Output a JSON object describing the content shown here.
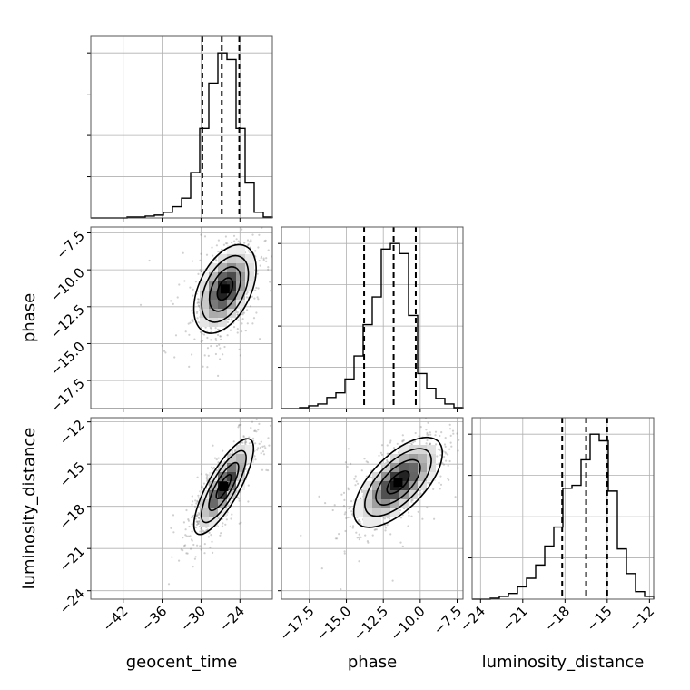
{
  "chart_data": {
    "type": "corner",
    "parameters": [
      {
        "name": "geocent_time",
        "range": [
          -47,
          -19
        ],
        "ticks": [
          -42,
          -36,
          -30,
          -24
        ]
      },
      {
        "name": "phase",
        "range": [
          -19.4,
          -7.1
        ],
        "ticks": [
          -17.5,
          -15.0,
          -12.5,
          -10.0,
          -7.5
        ]
      },
      {
        "name": "luminosity_distance",
        "range": [
          -24.6,
          -11.7
        ],
        "ticks": [
          -24,
          -21,
          -18,
          -15,
          -12
        ]
      }
    ],
    "quantiles": {
      "geocent_time": [
        -29.8,
        -26.8,
        -24.1
      ],
      "phase": [
        -13.8,
        -11.8,
        -10.3
      ],
      "luminosity_distance": [
        -18.2,
        -16.5,
        -15.0
      ]
    },
    "marginals": {
      "geocent_time": {
        "edges": [
          -47,
          -45.6,
          -44.2,
          -42.8,
          -41.4,
          -40,
          -38.6,
          -37.2,
          -35.8,
          -34.4,
          -33,
          -31.6,
          -30.2,
          -28.8,
          -27.4,
          -26,
          -24.6,
          -23.2,
          -21.8,
          -20.4,
          -19
        ],
        "counts": [
          0,
          0,
          0,
          0,
          1,
          1,
          2,
          3,
          6,
          12,
          21,
          48,
          95,
          143,
          175,
          168,
          95,
          37,
          6,
          1
        ]
      },
      "phase": {
        "edges": [
          -19.4,
          -18.785,
          -18.17,
          -17.555,
          -16.94,
          -16.325,
          -15.71,
          -15.095,
          -14.48,
          -13.865,
          -13.25,
          -12.635,
          -12.02,
          -11.405,
          -10.79,
          -10.175,
          -9.56,
          -8.945,
          -8.33,
          -7.715,
          -7.1
        ],
        "counts": [
          0,
          0,
          1,
          3,
          5,
          12,
          17,
          32,
          57,
          91,
          121,
          173,
          179,
          168,
          101,
          38,
          22,
          11,
          5,
          1
        ]
      },
      "luminosity_distance": {
        "edges": [
          -24.6,
          -23.955,
          -23.31,
          -22.665,
          -22.02,
          -21.375,
          -20.73,
          -20.085,
          -19.44,
          -18.795,
          -18.15,
          -17.505,
          -16.86,
          -16.215,
          -15.57,
          -14.925,
          -14.28,
          -13.635,
          -12.99,
          -12.345,
          -11.7
        ],
        "counts": [
          0,
          0,
          1,
          3,
          6,
          13,
          22,
          36,
          56,
          76,
          117,
          120,
          147,
          174,
          167,
          114,
          53,
          27,
          8,
          3
        ]
      }
    },
    "joint": [
      {
        "x": "geocent_time",
        "y": "phase",
        "center": [
          -26.3,
          -11.3
        ],
        "sd": [
          2.4,
          1.5
        ],
        "rho": 0.45
      },
      {
        "x": "geocent_time",
        "y": "luminosity_distance",
        "center": [
          -26.5,
          -16.6
        ],
        "sd": [
          2.3,
          1.7
        ],
        "rho": 0.8
      },
      {
        "x": "phase",
        "y": "luminosity_distance",
        "center": [
          -11.5,
          -16.3
        ],
        "sd": [
          1.5,
          1.6
        ],
        "rho": 0.65
      }
    ],
    "grid": true
  }
}
